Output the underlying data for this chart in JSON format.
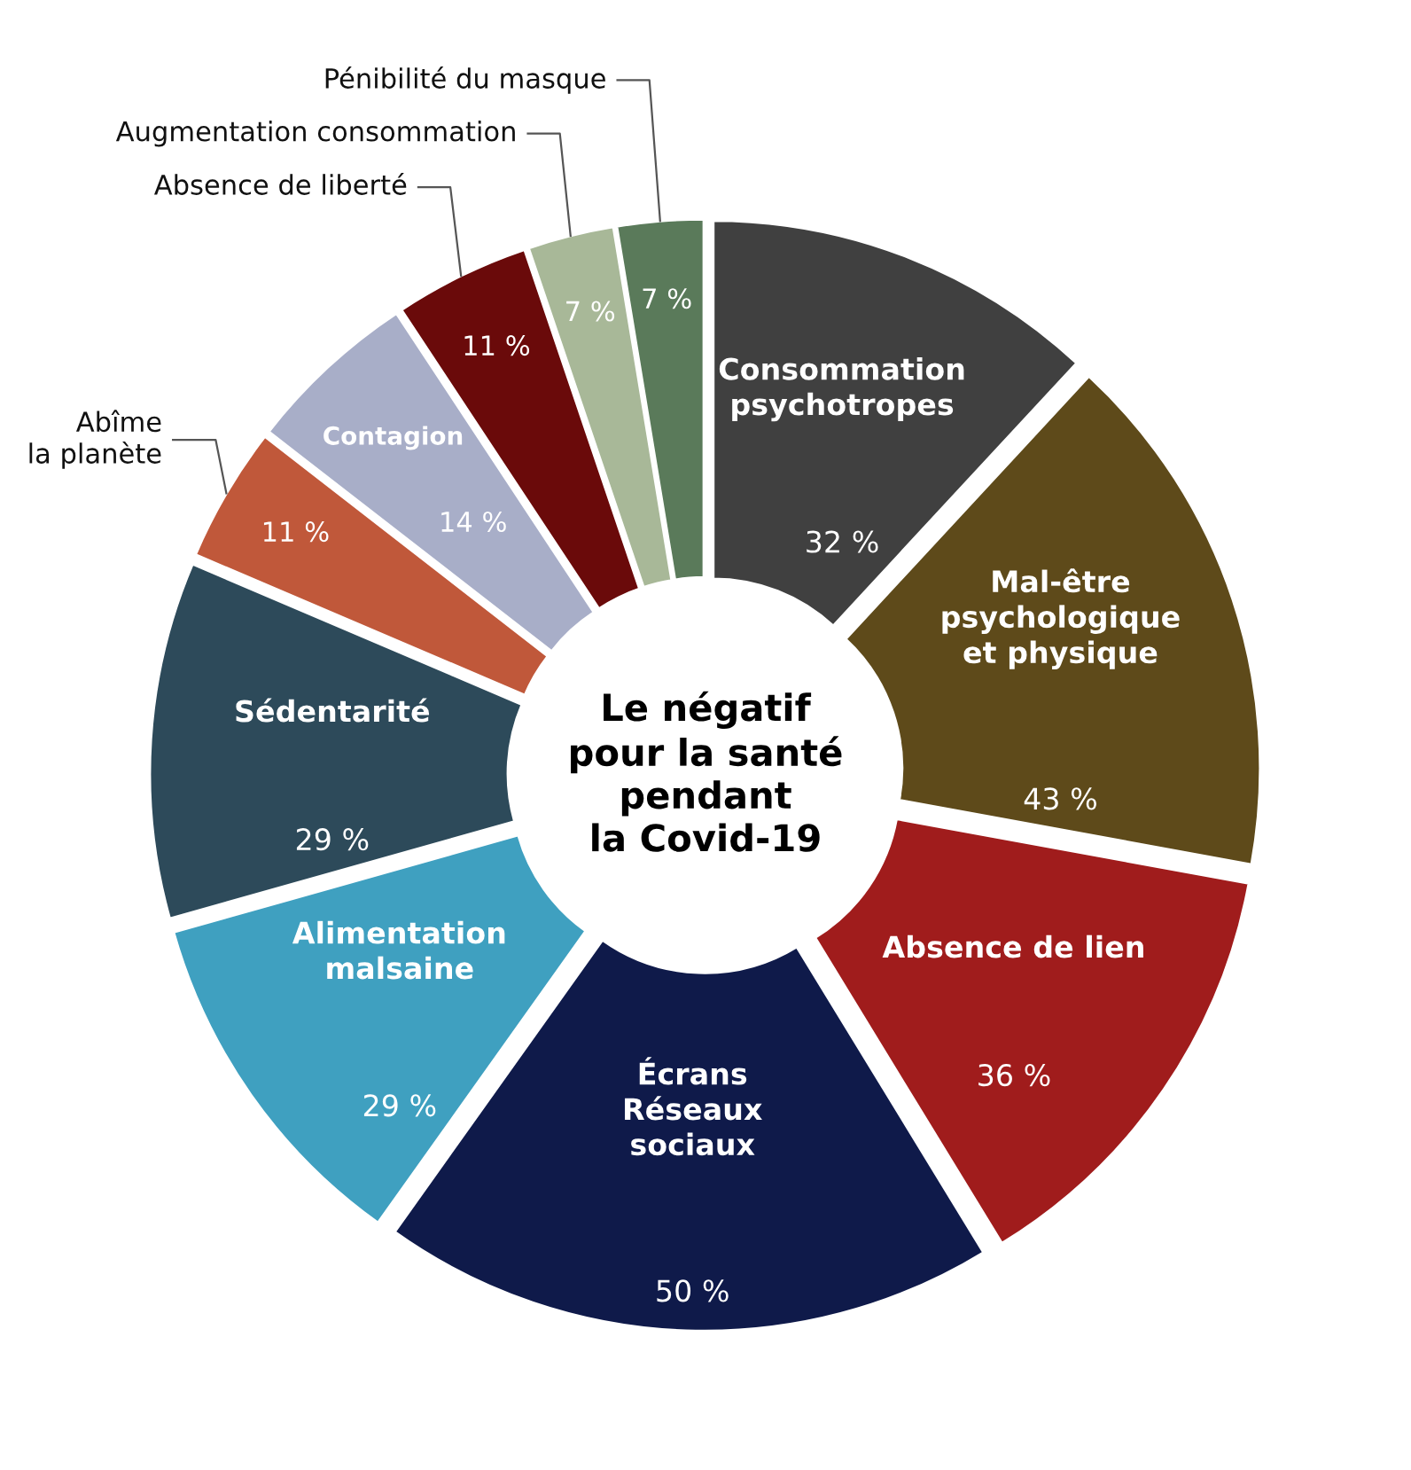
{
  "chart_data": {
    "type": "donut",
    "title": "Le négatif\npour la santé\npendant\nla Covid-19",
    "categories": [
      "Consommation\npsychotropes",
      "Mal-être\npsychologique\net physique",
      "Absence de lien",
      "Écrans\nRéseaux\nsociaux",
      "Alimentation\nmalsaine",
      "Sédentarité",
      "Abîme\nla planète",
      "Contagion",
      "Absence de liberté",
      "Augmentation consommation",
      "Pénibilité du masque"
    ],
    "values": [
      32,
      43,
      36,
      50,
      29,
      29,
      11,
      14,
      11,
      7,
      7
    ],
    "value_labels": [
      "32 %",
      "43 %",
      "36 %",
      "50 %",
      "29 %",
      "29 %",
      "11 %",
      "14 %",
      "11 %",
      "7 %",
      "7 %"
    ],
    "colors": [
      "#404040",
      "#5e4a1a",
      "#a01c1c",
      "#0f1a4a",
      "#3fa0c0",
      "#2d4a5a",
      "#c0583a",
      "#a8aec8",
      "#6a0a0a",
      "#a8b898",
      "#5a7a5a"
    ],
    "legend": false
  }
}
